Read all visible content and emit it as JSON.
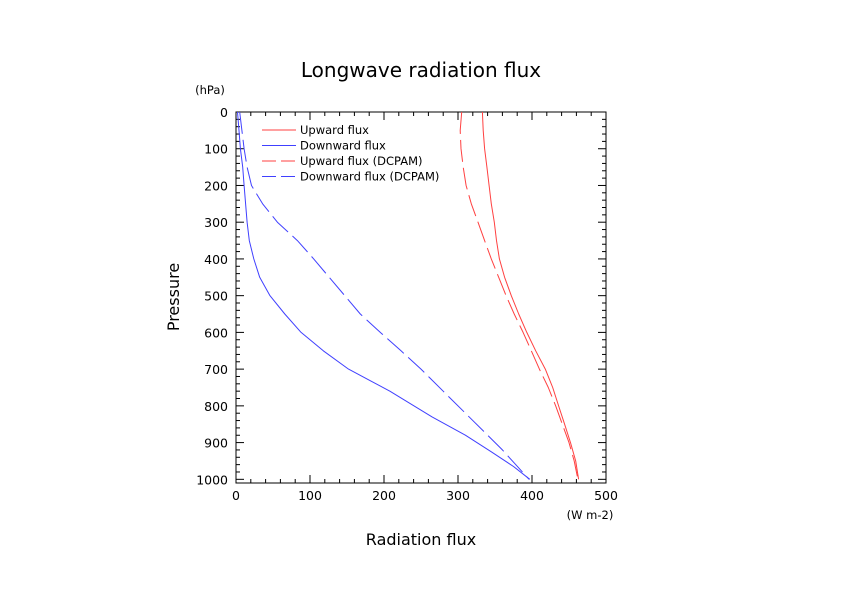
{
  "chart_data": {
    "type": "line",
    "title": "Longwave radiation flux",
    "xlabel": "Radiation flux",
    "ylabel": "Pressure",
    "x_unit": "(W m-2)",
    "y_unit": "(hPa)",
    "xlim": [
      0,
      500
    ],
    "ylim": [
      1010,
      0
    ],
    "y_inverted": true,
    "grid": false,
    "legend_position": "top-left",
    "x_ticks": [
      "0",
      "100",
      "200",
      "300",
      "400",
      "500"
    ],
    "y_ticks": [
      "0",
      "100",
      "200",
      "300",
      "400",
      "500",
      "600",
      "700",
      "800",
      "900",
      "1000"
    ],
    "series": [
      {
        "name": "Upward flux",
        "color": "#ff4040",
        "dash": "solid",
        "points": [
          [
            333,
            0
          ],
          [
            334,
            50
          ],
          [
            336,
            100
          ],
          [
            339,
            150
          ],
          [
            342,
            200
          ],
          [
            345,
            250
          ],
          [
            349,
            300
          ],
          [
            352,
            350
          ],
          [
            356,
            400
          ],
          [
            363,
            450
          ],
          [
            372,
            500
          ],
          [
            382,
            550
          ],
          [
            393,
            600
          ],
          [
            405,
            650
          ],
          [
            418,
            700
          ],
          [
            428,
            750
          ],
          [
            436,
            800
          ],
          [
            444,
            850
          ],
          [
            452,
            900
          ],
          [
            459,
            950
          ],
          [
            463,
            1000
          ]
        ]
      },
      {
        "name": "Downward flux",
        "color": "#4040ff",
        "dash": "solid",
        "points": [
          [
            2,
            0
          ],
          [
            4,
            50
          ],
          [
            6,
            100
          ],
          [
            9,
            150
          ],
          [
            11,
            200
          ],
          [
            13,
            250
          ],
          [
            15,
            300
          ],
          [
            18,
            350
          ],
          [
            24,
            400
          ],
          [
            32,
            450
          ],
          [
            46,
            500
          ],
          [
            66,
            550
          ],
          [
            88,
            600
          ],
          [
            118,
            650
          ],
          [
            152,
            700
          ],
          [
            208,
            760
          ],
          [
            265,
            830
          ],
          [
            310,
            880
          ],
          [
            345,
            925
          ],
          [
            375,
            965
          ],
          [
            397,
            1000
          ]
        ]
      },
      {
        "name": "Upward flux (DCPAM)",
        "color": "#ff4040",
        "dash": "dashed",
        "points": [
          [
            305,
            0
          ],
          [
            303,
            50
          ],
          [
            304,
            100
          ],
          [
            307,
            150
          ],
          [
            311,
            200
          ],
          [
            318,
            250
          ],
          [
            327,
            300
          ],
          [
            336,
            350
          ],
          [
            345,
            400
          ],
          [
            355,
            450
          ],
          [
            365,
            500
          ],
          [
            376,
            550
          ],
          [
            388,
            600
          ],
          [
            399,
            650
          ],
          [
            410,
            700
          ],
          [
            422,
            750
          ],
          [
            432,
            800
          ],
          [
            441,
            850
          ],
          [
            450,
            900
          ],
          [
            457,
            950
          ],
          [
            462,
            1000
          ]
        ]
      },
      {
        "name": "Downward flux (DCPAM)",
        "color": "#4040ff",
        "dash": "dashed",
        "points": [
          [
            5,
            0
          ],
          [
            8,
            50
          ],
          [
            11,
            100
          ],
          [
            15,
            150
          ],
          [
            21,
            200
          ],
          [
            36,
            250
          ],
          [
            56,
            300
          ],
          [
            83,
            350
          ],
          [
            105,
            400
          ],
          [
            126,
            450
          ],
          [
            147,
            500
          ],
          [
            168,
            550
          ],
          [
            195,
            600
          ],
          [
            223,
            650
          ],
          [
            250,
            700
          ],
          [
            280,
            760
          ],
          [
            310,
            820
          ],
          [
            340,
            880
          ],
          [
            360,
            920
          ],
          [
            378,
            960
          ],
          [
            396,
            1000
          ]
        ]
      }
    ]
  }
}
